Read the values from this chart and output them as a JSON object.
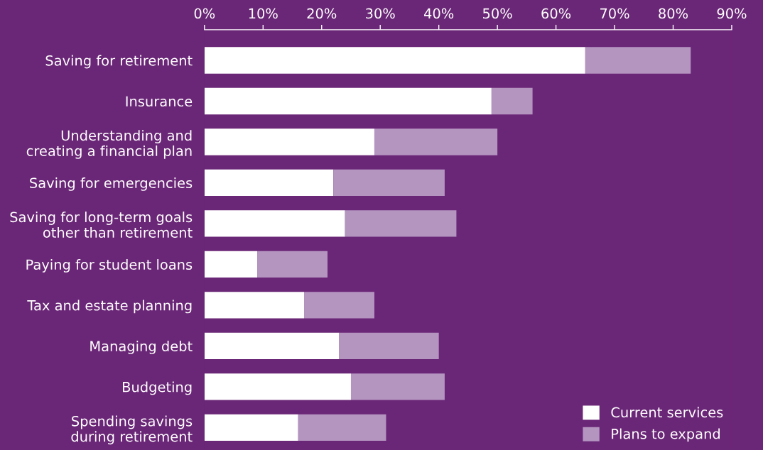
{
  "chart_data": {
    "type": "bar",
    "orientation": "horizontal",
    "stacked": true,
    "categories": [
      "Saving for retirement",
      "Insurance",
      "Understanding and\ncreating a financial plan",
      "Saving for emergencies",
      "Saving for long-term goals\nother than retirement",
      "Paying for student loans",
      "Tax and estate planning",
      "Managing debt",
      "Budgeting",
      "Spending savings\nduring retirement"
    ],
    "series": [
      {
        "name": "Current services",
        "color": "#ffffff",
        "values": [
          65,
          49,
          29,
          22,
          24,
          9,
          17,
          23,
          25,
          16
        ]
      },
      {
        "name": "Plans to expand",
        "color": "#b495c0",
        "values": [
          18,
          7,
          21,
          19,
          19,
          12,
          12,
          17,
          16,
          15
        ]
      }
    ],
    "xlim": [
      0,
      90
    ],
    "xticks": [
      {
        "value": 0,
        "label": "0%"
      },
      {
        "value": 10,
        "label": "10%"
      },
      {
        "value": 20,
        "label": "20%"
      },
      {
        "value": 30,
        "label": "30%"
      },
      {
        "value": 40,
        "label": "40%"
      },
      {
        "value": 50,
        "label": "50%"
      },
      {
        "value": 60,
        "label": "60%"
      },
      {
        "value": 70,
        "label": "70%"
      },
      {
        "value": 80,
        "label": "80%"
      },
      {
        "value": 90,
        "label": "90%"
      }
    ],
    "grid": false,
    "legend": "bottom right"
  }
}
